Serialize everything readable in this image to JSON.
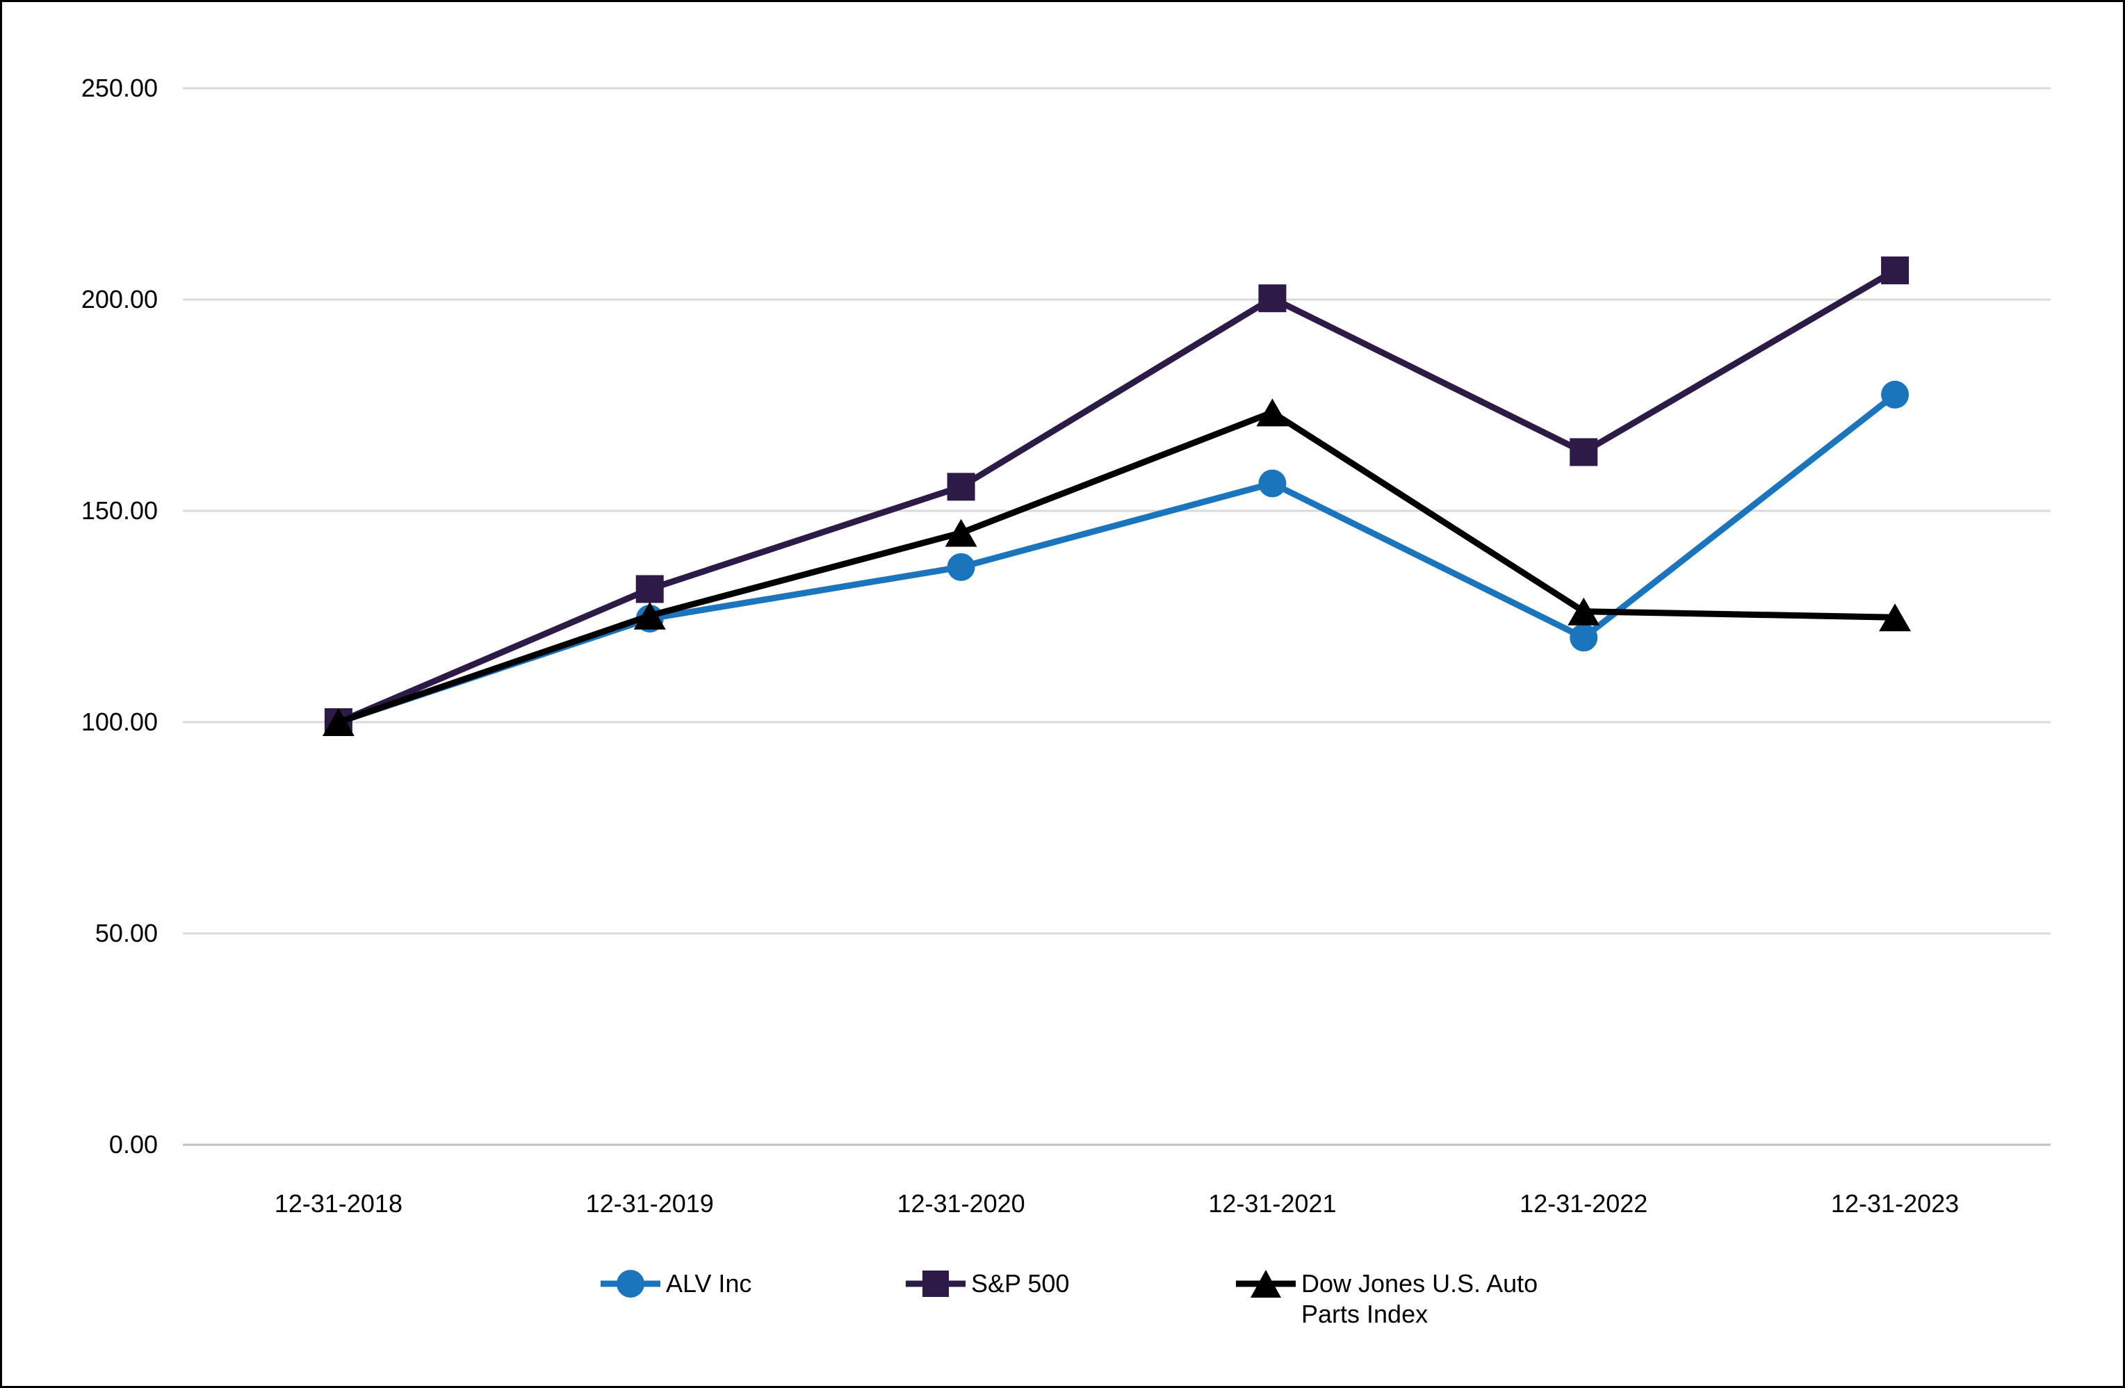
{
  "chart_data": {
    "type": "line",
    "title": "",
    "xlabel": "",
    "ylabel": "",
    "categories": [
      "12-31-2018",
      "12-31-2019",
      "12-31-2020",
      "12-31-2021",
      "12-31-2022",
      "12-31-2023"
    ],
    "series": [
      {
        "name": "ALV Inc",
        "marker": "circle",
        "color": "#1B75BC",
        "values": [
          100.0,
          124.5,
          136.7,
          156.5,
          120.0,
          177.5
        ]
      },
      {
        "name": "S&P 500",
        "marker": "square",
        "color": "#2E1A47",
        "values": [
          100.0,
          131.5,
          155.7,
          200.3,
          163.9,
          206.9
        ]
      },
      {
        "name": "Dow Jones U.S. Auto Parts Index",
        "marker": "triangle",
        "color": "#000000",
        "values": [
          100.0,
          125.2,
          144.8,
          173.3,
          126.2,
          124.8
        ]
      }
    ],
    "ylim": [
      0,
      250
    ],
    "yticks": [
      0,
      50,
      100,
      150,
      200,
      250
    ],
    "ytick_labels": [
      "0.00",
      "50.00",
      "100.00",
      "150.00",
      "200.00",
      "250.00"
    ],
    "grid": true,
    "legend_position": "bottom"
  },
  "colors": {
    "background": "#FFFFFF",
    "border": "#000000",
    "gridline": "#D9D9D9",
    "axis_line": "#BFBFBF",
    "tick_text": "#000000"
  }
}
